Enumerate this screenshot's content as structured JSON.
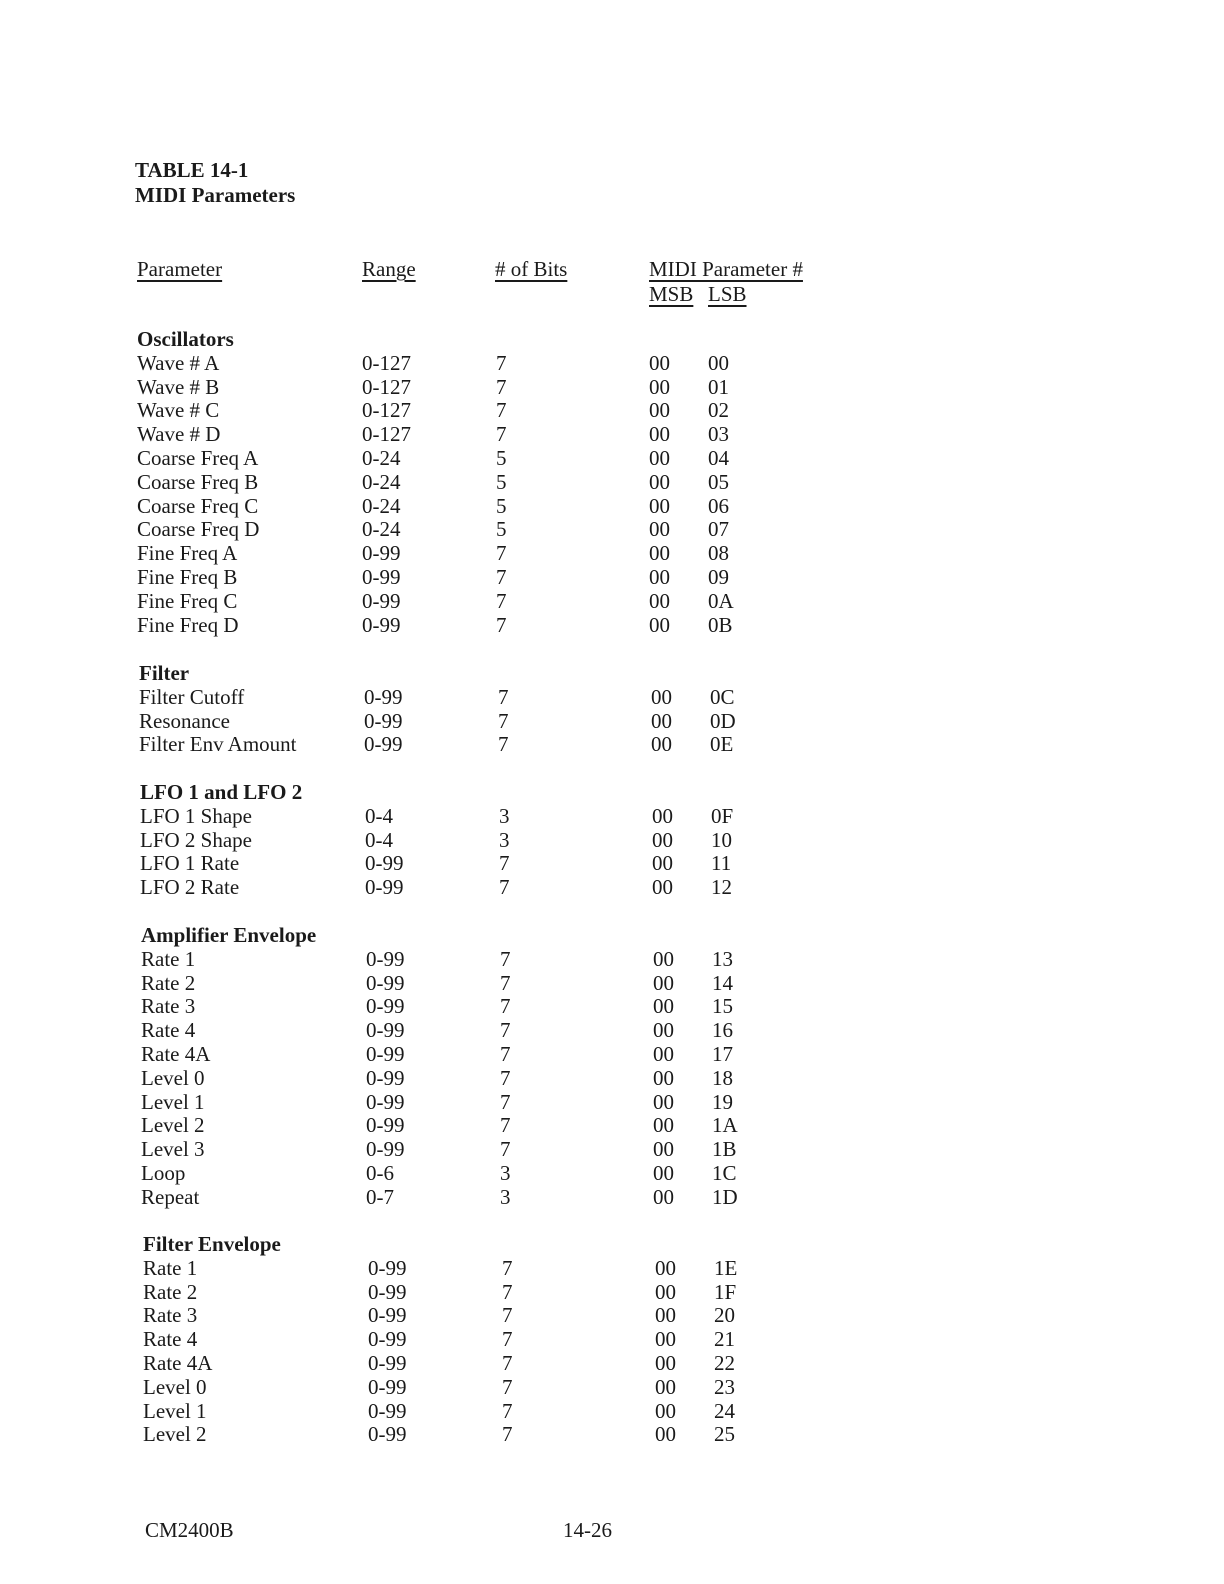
{
  "title": {
    "line1": "TABLE 14-1",
    "line2": "MIDI Parameters"
  },
  "headers": {
    "parameter": "Parameter",
    "range": "Range",
    "bits": "# of Bits",
    "midi": "MIDI Parameter #",
    "msb": "MSB",
    "lsb": "LSB"
  },
  "sections": [
    {
      "name": "Oscillators",
      "rows": [
        [
          "Wave # A",
          "0-127",
          "7",
          "00",
          "00"
        ],
        [
          "Wave # B",
          "0-127",
          "7",
          "00",
          "01"
        ],
        [
          "Wave # C",
          "0-127",
          "7",
          "00",
          "02"
        ],
        [
          "Wave # D",
          "0-127",
          "7",
          "00",
          "03"
        ],
        [
          "Coarse Freq A",
          "0-24",
          "5",
          "00",
          "04"
        ],
        [
          "Coarse Freq B",
          "0-24",
          "5",
          "00",
          "05"
        ],
        [
          "Coarse Freq C",
          "0-24",
          "5",
          "00",
          "06"
        ],
        [
          "Coarse Freq D",
          "0-24",
          "5",
          "00",
          "07"
        ],
        [
          "Fine Freq A",
          "0-99",
          "7",
          "00",
          "08"
        ],
        [
          "Fine Freq B",
          "0-99",
          "7",
          "00",
          "09"
        ],
        [
          "Fine Freq C",
          "0-99",
          "7",
          "00",
          "0A"
        ],
        [
          "Fine Freq D",
          "0-99",
          "7",
          "00",
          "0B"
        ]
      ]
    },
    {
      "name": "Filter",
      "rows": [
        [
          "Filter Cutoff",
          "0-99",
          "7",
          "00",
          "0C"
        ],
        [
          "Resonance",
          "0-99",
          "7",
          "00",
          "0D"
        ],
        [
          "Filter Env Amount",
          "0-99",
          "7",
          "00",
          "0E"
        ]
      ]
    },
    {
      "name": "LFO 1 and LFO 2",
      "rows": [
        [
          "LFO 1 Shape",
          "0-4",
          "3",
          "00",
          "0F"
        ],
        [
          "LFO 2 Shape",
          "0-4",
          "3",
          "00",
          "10"
        ],
        [
          "LFO 1 Rate",
          "0-99",
          "7",
          "00",
          "11"
        ],
        [
          "LFO 2 Rate",
          "0-99",
          "7",
          "00",
          "12"
        ]
      ]
    },
    {
      "name": "Amplifier Envelope",
      "rows": [
        [
          "Rate 1",
          "0-99",
          "7",
          "00",
          "13"
        ],
        [
          "Rate 2",
          "0-99",
          "7",
          "00",
          "14"
        ],
        [
          "Rate 3",
          "0-99",
          "7",
          "00",
          "15"
        ],
        [
          "Rate 4",
          "0-99",
          "7",
          "00",
          "16"
        ],
        [
          "Rate 4A",
          "0-99",
          "7",
          "00",
          "17"
        ],
        [
          "Level 0",
          "0-99",
          "7",
          "00",
          "18"
        ],
        [
          "Level 1",
          "0-99",
          "7",
          "00",
          "19"
        ],
        [
          "Level 2",
          "0-99",
          "7",
          "00",
          "1A"
        ],
        [
          "Level 3",
          "0-99",
          "7",
          "00",
          "1B"
        ],
        [
          "Loop",
          "0-6",
          "3",
          "00",
          "1C"
        ],
        [
          "Repeat",
          "0-7",
          "3",
          "00",
          "1D"
        ]
      ]
    },
    {
      "name": "Filter Envelope",
      "rows": [
        [
          "Rate 1",
          "0-99",
          "7",
          "00",
          "1E"
        ],
        [
          "Rate 2",
          "0-99",
          "7",
          "00",
          "1F"
        ],
        [
          "Rate 3",
          "0-99",
          "7",
          "00",
          "20"
        ],
        [
          "Rate 4",
          "0-99",
          "7",
          "00",
          "21"
        ],
        [
          "Rate 4A",
          "0-99",
          "7",
          "00",
          "22"
        ],
        [
          "Level 0",
          "0-99",
          "7",
          "00",
          "23"
        ],
        [
          "Level 1",
          "0-99",
          "7",
          "00",
          "24"
        ],
        [
          "Level 2",
          "0-99",
          "7",
          "00",
          "25"
        ]
      ]
    }
  ],
  "footer": {
    "doc_id": "CM2400B",
    "page": "14-26"
  }
}
